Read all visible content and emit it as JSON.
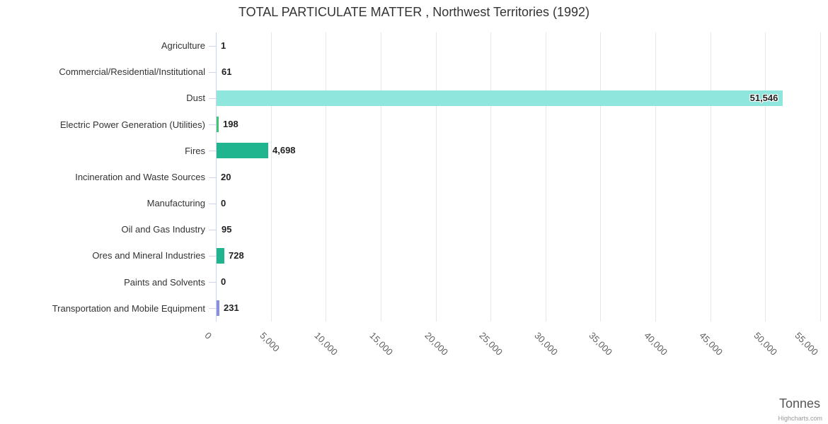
{
  "chart_data": {
    "type": "bar",
    "orientation": "horizontal",
    "title": "TOTAL PARTICULATE MATTER , Northwest Territories (1992)",
    "categories": [
      "Agriculture",
      "Commercial/Residential/Institutional",
      "Dust",
      "Electric Power Generation (Utilities)",
      "Fires",
      "Incineration and Waste Sources",
      "Manufacturing",
      "Oil and Gas Industry",
      "Ores and Mineral Industries",
      "Paints and Solvents",
      "Transportation and Mobile Equipment"
    ],
    "values": [
      1,
      61,
      51546,
      198,
      4698,
      20,
      0,
      95,
      728,
      0,
      231
    ],
    "value_labels": [
      "1",
      "61",
      "51,546",
      "198",
      "4,698",
      "20",
      "0",
      "95",
      "728",
      "0",
      "231"
    ],
    "bar_colors": [
      "#7cb5ec",
      "#434348",
      "#8ee6dc",
      "#44c47a",
      "#20b48f",
      null,
      null,
      "#f15c80",
      "#20b48f",
      null,
      "#8a90e0"
    ],
    "xlabel": "Tonnes",
    "xlim": [
      0,
      55000
    ],
    "tick_interval": 5000,
    "x_ticks": [
      "0",
      "5,000",
      "10,000",
      "15,000",
      "20,000",
      "25,000",
      "30,000",
      "35,000",
      "40,000",
      "45,000",
      "50,000",
      "55,000"
    ],
    "gridlines": true,
    "legend": "none",
    "credit": "Highcharts.com"
  }
}
